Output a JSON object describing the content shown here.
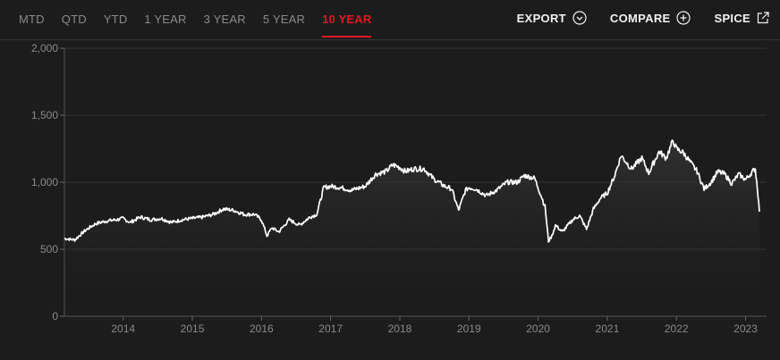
{
  "tabs": [
    {
      "label": "MTD",
      "active": false
    },
    {
      "label": "QTD",
      "active": false
    },
    {
      "label": "YTD",
      "active": false
    },
    {
      "label": "1 YEAR",
      "active": false
    },
    {
      "label": "3 YEAR",
      "active": false
    },
    {
      "label": "5 YEAR",
      "active": false
    },
    {
      "label": "10 YEAR",
      "active": true
    }
  ],
  "actions": {
    "export": {
      "label": "EXPORT",
      "icon": "chevron-down-circle-icon"
    },
    "compare": {
      "label": "COMPARE",
      "icon": "plus-circle-icon"
    },
    "spice": {
      "label": "SPICE",
      "icon": "external-link-icon"
    }
  },
  "colors": {
    "accent": "#e0191f",
    "line": "#ffffff",
    "background": "#1c1c1c",
    "grid": "#333333"
  },
  "chart_data": {
    "type": "area",
    "title": "",
    "xlabel": "",
    "ylabel": "",
    "ylim": [
      0,
      2000
    ],
    "xlim": [
      2013.15,
      2023.2
    ],
    "y_ticks": [
      0,
      500,
      1000,
      1500,
      2000
    ],
    "y_tick_labels": [
      "0",
      "500",
      "1,000",
      "1,500",
      "2,000"
    ],
    "x_ticks": [
      2014,
      2015,
      2016,
      2017,
      2018,
      2019,
      2020,
      2021,
      2022,
      2023
    ],
    "x_tick_labels": [
      "2014",
      "2015",
      "2016",
      "2017",
      "2018",
      "2019",
      "2020",
      "2021",
      "2022",
      "2023"
    ],
    "grid": true,
    "series": [
      {
        "x": [
          2013.15,
          2013.3,
          2013.45,
          2013.6,
          2013.75,
          2013.9,
          2014.0,
          2014.1,
          2014.25,
          2014.4,
          2014.55,
          2014.7,
          2014.85,
          2015.0,
          2015.15,
          2015.3,
          2015.45,
          2015.6,
          2015.75,
          2015.9,
          2016.0,
          2016.08,
          2016.15,
          2016.25,
          2016.4,
          2016.55,
          2016.7,
          2016.8,
          2016.85,
          2016.9,
          2017.0,
          2017.15,
          2017.3,
          2017.5,
          2017.65,
          2017.8,
          2017.9,
          2018.0,
          2018.08,
          2018.2,
          2018.35,
          2018.5,
          2018.65,
          2018.75,
          2018.85,
          2018.95,
          2019.0,
          2019.1,
          2019.25,
          2019.4,
          2019.55,
          2019.7,
          2019.8,
          2019.95,
          2020.1,
          2020.15,
          2020.2,
          2020.25,
          2020.35,
          2020.5,
          2020.6,
          2020.7,
          2020.8,
          2020.9,
          2021.0,
          2021.1,
          2021.2,
          2021.35,
          2021.5,
          2021.6,
          2021.75,
          2021.85,
          2021.95,
          2022.0,
          2022.1,
          2022.2,
          2022.3,
          2022.4,
          2022.5,
          2022.6,
          2022.7,
          2022.8,
          2022.9,
          2023.0,
          2023.1,
          2023.14,
          2023.17,
          2023.2
        ],
        "y": [
          580,
          570,
          640,
          690,
          710,
          720,
          730,
          700,
          740,
          720,
          730,
          700,
          720,
          730,
          740,
          760,
          800,
          790,
          760,
          760,
          720,
          600,
          660,
          630,
          720,
          680,
          740,
          760,
          860,
          960,
          970,
          960,
          940,
          970,
          1060,
          1080,
          1130,
          1110,
          1080,
          1100,
          1100,
          1020,
          970,
          950,
          790,
          940,
          960,
          950,
          900,
          940,
          1000,
          1000,
          1050,
          1030,
          820,
          560,
          600,
          680,
          630,
          720,
          750,
          650,
          800,
          880,
          920,
          1040,
          1200,
          1100,
          1180,
          1070,
          1230,
          1180,
          1310,
          1250,
          1220,
          1150,
          1080,
          950,
          1000,
          1080,
          1060,
          990,
          1060,
          1020,
          1080,
          1100,
          960,
          780
        ]
      }
    ]
  }
}
